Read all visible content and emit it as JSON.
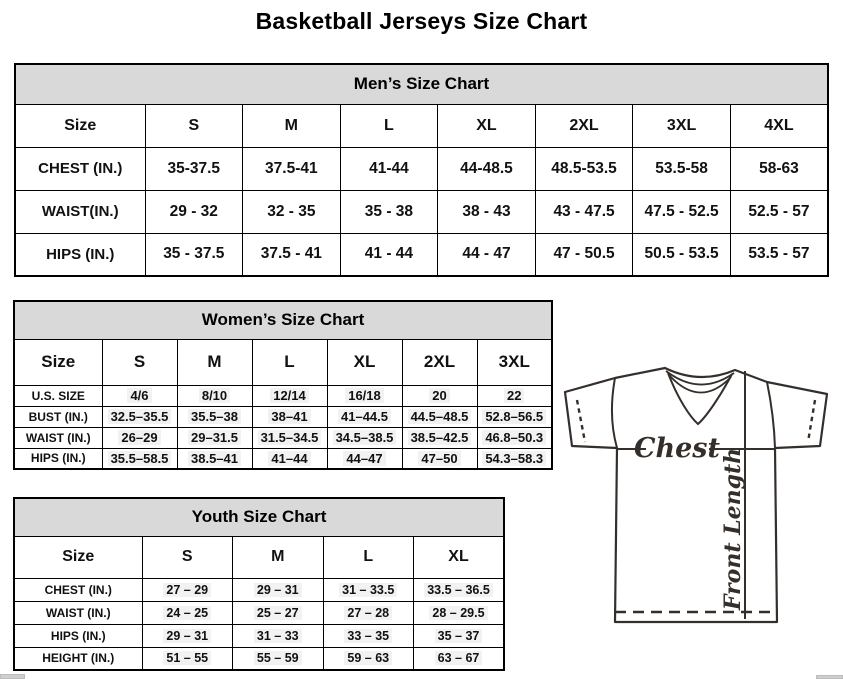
{
  "title": "Basketball Jerseys Size Chart",
  "tables": {
    "men": {
      "title": "Men’s Size Chart",
      "size_label": "Size",
      "headers": [
        "S",
        "M",
        "L",
        "XL",
        "2XL",
        "3XL",
        "4XL"
      ],
      "rows": [
        {
          "label": "CHEST (IN.)",
          "values": [
            "35-37.5",
            "37.5-41",
            "41-44",
            "44-48.5",
            "48.5-53.5",
            "53.5-58",
            "58-63"
          ]
        },
        {
          "label": "WAIST(IN.)",
          "values": [
            "29 - 32",
            "32 - 35",
            "35 - 38",
            "38 - 43",
            "43 - 47.5",
            "47.5 - 52.5",
            "52.5 - 57"
          ]
        },
        {
          "label": "HIPS (IN.)",
          "values": [
            "35 - 37.5",
            "37.5 - 41",
            "41 - 44",
            "44 - 47",
            "47 - 50.5",
            "50.5 - 53.5",
            "53.5 - 57"
          ]
        }
      ]
    },
    "women": {
      "title": "Women’s Size Chart",
      "size_label": "Size",
      "headers": [
        "S",
        "M",
        "L",
        "XL",
        "2XL",
        "3XL"
      ],
      "rows": [
        {
          "label": "U.S. SIZE",
          "values": [
            "4/6",
            "8/10",
            "12/14",
            "16/18",
            "20",
            "22"
          ]
        },
        {
          "label": "BUST (IN.)",
          "values": [
            "32.5–35.5",
            "35.5–38",
            "38–41",
            "41–44.5",
            "44.5–48.5",
            "52.8–56.5"
          ]
        },
        {
          "label": "WAIST (IN.)",
          "values": [
            "26–29",
            "29–31.5",
            "31.5–34.5",
            "34.5–38.5",
            "38.5–42.5",
            "46.8–50.3"
          ]
        },
        {
          "label": "HIPS (IN.)",
          "values": [
            "35.5–58.5",
            "38.5–41",
            "41–44",
            "44–47",
            "47–50",
            "54.3–58.3"
          ]
        }
      ]
    },
    "youth": {
      "title": "Youth Size Chart",
      "size_label": "Size",
      "headers": [
        "S",
        "M",
        "L",
        "XL"
      ],
      "rows": [
        {
          "label": "CHEST (IN.)",
          "values": [
            "27 – 29",
            "29 – 31",
            "31 – 33.5",
            "33.5 – 36.5"
          ]
        },
        {
          "label": "WAIST (IN.)",
          "values": [
            "24 – 25",
            "25 – 27",
            "27 – 28",
            "28 – 29.5"
          ]
        },
        {
          "label": "HIPS (IN.)",
          "values": [
            "29 – 31",
            "31 – 33",
            "33 – 35",
            "35 – 37"
          ]
        },
        {
          "label": "HEIGHT (IN.)",
          "values": [
            "51 – 55",
            "55 – 59",
            "59 – 63",
            "63 – 67"
          ]
        }
      ]
    }
  },
  "diagram": {
    "chest_label": "Chest",
    "front_length_label": "Front Length"
  },
  "colors": {
    "band": "#d9d9d9",
    "border": "#000000",
    "highlight": "#f2f2f2",
    "jersey_line": "#352f2b"
  }
}
